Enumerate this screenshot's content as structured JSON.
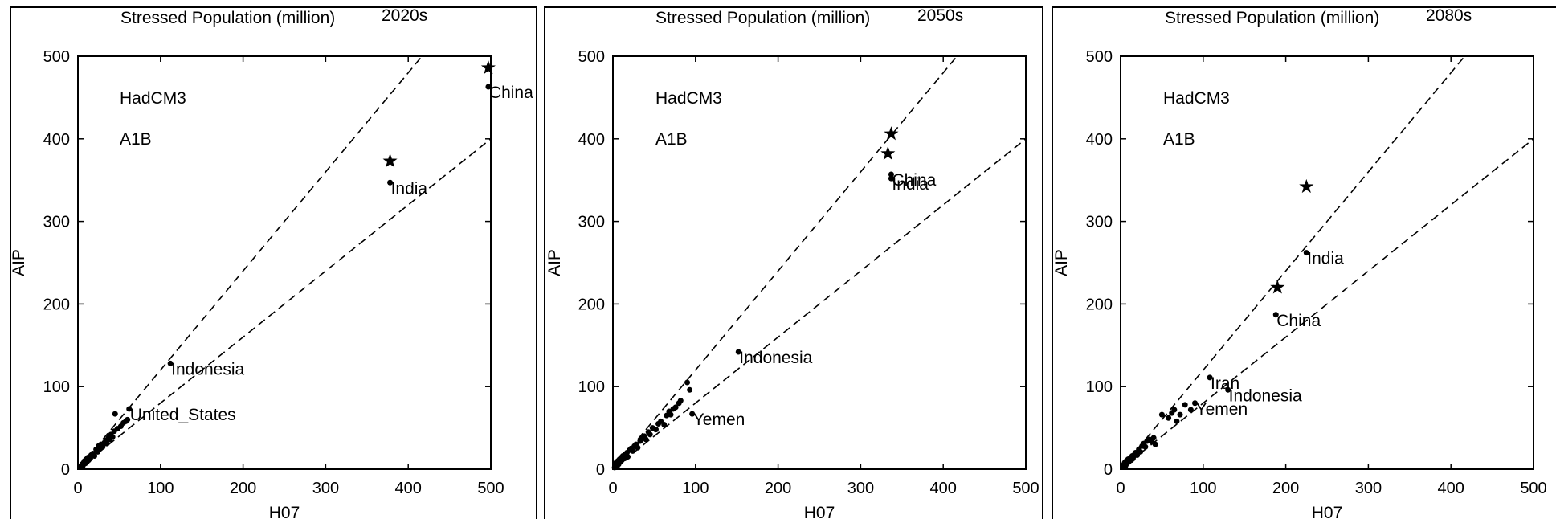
{
  "figure": {
    "ylabel": "AIP",
    "xlabel": "H07"
  },
  "chart_data": [
    {
      "type": "scatter",
      "title": "Stressed Population (million)",
      "period": "2020s",
      "model": "HadCM3",
      "scenario": "A1B",
      "xlabel": "H07",
      "ylabel": "AIP",
      "xlim": [
        0,
        500
      ],
      "ylim": [
        0,
        500
      ],
      "xticks": [
        0,
        100,
        200,
        300,
        400,
        500
      ],
      "yticks": [
        0,
        100,
        200,
        300,
        400,
        500
      ],
      "reference_lines": [
        {
          "slope": 1.2
        },
        {
          "slope": 0.8
        }
      ],
      "series": [
        {
          "marker": "dot",
          "points": [
            [
              3,
              3
            ],
            [
              5,
              6
            ],
            [
              6,
              4
            ],
            [
              7,
              8
            ],
            [
              8,
              10
            ],
            [
              9,
              7
            ],
            [
              10,
              12
            ],
            [
              11,
              9
            ],
            [
              12,
              14
            ],
            [
              13,
              11
            ],
            [
              14,
              15
            ],
            [
              15,
              13
            ],
            [
              16,
              17
            ],
            [
              18,
              19
            ],
            [
              20,
              16
            ],
            [
              22,
              24
            ],
            [
              24,
              21
            ],
            [
              25,
              28
            ],
            [
              27,
              25
            ],
            [
              28,
              30
            ],
            [
              30,
              27
            ],
            [
              32,
              32
            ],
            [
              34,
              35
            ],
            [
              35,
              31
            ],
            [
              37,
              38
            ],
            [
              39,
              36
            ],
            [
              40,
              42
            ],
            [
              42,
              39
            ],
            [
              44,
              46
            ],
            [
              45,
              67
            ],
            [
              48,
              49
            ],
            [
              52,
              52
            ],
            [
              55,
              56
            ],
            [
              58,
              58
            ],
            [
              60,
              60
            ],
            [
              62,
              73
            ],
            [
              112,
              128
            ],
            [
              378,
              347
            ],
            [
              497,
              463
            ]
          ]
        },
        {
          "marker": "star",
          "points": [
            [
              378,
              373
            ],
            [
              497,
              486
            ]
          ]
        }
      ],
      "labels": [
        {
          "text": "China",
          "x": 497,
          "y": 463
        },
        {
          "text": "India",
          "x": 378,
          "y": 347
        },
        {
          "text": "Indonesia",
          "x": 112,
          "y": 128
        },
        {
          "text": "United_States",
          "x": 62,
          "y": 73
        }
      ]
    },
    {
      "type": "scatter",
      "title": "Stressed Population (million)",
      "period": "2050s",
      "model": "HadCM3",
      "scenario": "A1B",
      "xlabel": "H07",
      "ylabel": "AIP",
      "xlim": [
        0,
        500
      ],
      "ylim": [
        0,
        500
      ],
      "xticks": [
        0,
        100,
        200,
        300,
        400,
        500
      ],
      "yticks": [
        0,
        100,
        200,
        300,
        400,
        500
      ],
      "reference_lines": [
        {
          "slope": 1.2
        },
        {
          "slope": 0.8
        }
      ],
      "series": [
        {
          "marker": "dot",
          "points": [
            [
              2,
              2
            ],
            [
              3,
              5
            ],
            [
              4,
              8
            ],
            [
              5,
              3
            ],
            [
              6,
              10
            ],
            [
              7,
              6
            ],
            [
              8,
              12
            ],
            [
              9,
              9
            ],
            [
              10,
              14
            ],
            [
              11,
              11
            ],
            [
              12,
              16
            ],
            [
              14,
              13
            ],
            [
              15,
              18
            ],
            [
              17,
              20
            ],
            [
              18,
              15
            ],
            [
              20,
              23
            ],
            [
              22,
              25
            ],
            [
              24,
              22
            ],
            [
              26,
              28
            ],
            [
              28,
              30
            ],
            [
              30,
              26
            ],
            [
              33,
              34
            ],
            [
              35,
              37
            ],
            [
              38,
              40
            ],
            [
              40,
              36
            ],
            [
              43,
              45
            ],
            [
              45,
              42
            ],
            [
              48,
              50
            ],
            [
              52,
              48
            ],
            [
              55,
              55
            ],
            [
              58,
              58
            ],
            [
              62,
              54
            ],
            [
              65,
              65
            ],
            [
              68,
              70
            ],
            [
              70,
              66
            ],
            [
              73,
              73
            ],
            [
              76,
              75
            ],
            [
              80,
              80
            ],
            [
              82,
              83
            ],
            [
              90,
              105
            ],
            [
              93,
              96
            ],
            [
              96,
              67
            ],
            [
              152,
              142
            ],
            [
              337,
              357
            ],
            [
              337,
              352
            ]
          ]
        },
        {
          "marker": "star",
          "points": [
            [
              337,
              406
            ],
            [
              333,
              382
            ]
          ]
        }
      ],
      "labels": [
        {
          "text": "China",
          "x": 337,
          "y": 357
        },
        {
          "text": "India",
          "x": 337,
          "y": 352
        },
        {
          "text": "Indonesia",
          "x": 152,
          "y": 142
        },
        {
          "text": "Yemen",
          "x": 96,
          "y": 67
        }
      ]
    },
    {
      "type": "scatter",
      "title": "Stressed Population (million)",
      "period": "2080s",
      "model": "HadCM3",
      "scenario": "A1B",
      "xlabel": "H07",
      "ylabel": "AIP",
      "xlim": [
        0,
        500
      ],
      "ylim": [
        0,
        500
      ],
      "xticks": [
        0,
        100,
        200,
        300,
        400,
        500
      ],
      "yticks": [
        0,
        100,
        200,
        300,
        400,
        500
      ],
      "reference_lines": [
        {
          "slope": 1.2
        },
        {
          "slope": 0.8
        }
      ],
      "series": [
        {
          "marker": "dot",
          "points": [
            [
              3,
              3
            ],
            [
              4,
              6
            ],
            [
              5,
              8
            ],
            [
              6,
              4
            ],
            [
              7,
              10
            ],
            [
              8,
              7
            ],
            [
              9,
              12
            ],
            [
              10,
              9
            ],
            [
              12,
              14
            ],
            [
              13,
              11
            ],
            [
              14,
              16
            ],
            [
              15,
              13
            ],
            [
              17,
              18
            ],
            [
              18,
              20
            ],
            [
              20,
              17
            ],
            [
              22,
              24
            ],
            [
              24,
              21
            ],
            [
              26,
              28
            ],
            [
              28,
              31
            ],
            [
              30,
              27
            ],
            [
              32,
              34
            ],
            [
              35,
              36
            ],
            [
              38,
              33
            ],
            [
              40,
              38
            ],
            [
              42,
              30
            ],
            [
              50,
              66
            ],
            [
              58,
              62
            ],
            [
              62,
              68
            ],
            [
              65,
              72
            ],
            [
              68,
              58
            ],
            [
              72,
              66
            ],
            [
              78,
              78
            ],
            [
              85,
              72
            ],
            [
              90,
              80
            ],
            [
              108,
              111
            ],
            [
              130,
              96
            ],
            [
              188,
              187
            ],
            [
              225,
              262
            ]
          ]
        },
        {
          "marker": "star",
          "points": [
            [
              225,
              342
            ],
            [
              190,
              220
            ]
          ]
        }
      ],
      "labels": [
        {
          "text": "India",
          "x": 225,
          "y": 262
        },
        {
          "text": "China",
          "x": 188,
          "y": 187
        },
        {
          "text": "Iran",
          "x": 108,
          "y": 111
        },
        {
          "text": "Indonesia",
          "x": 130,
          "y": 96
        },
        {
          "text": "Yemen",
          "x": 90,
          "y": 80
        }
      ]
    }
  ]
}
